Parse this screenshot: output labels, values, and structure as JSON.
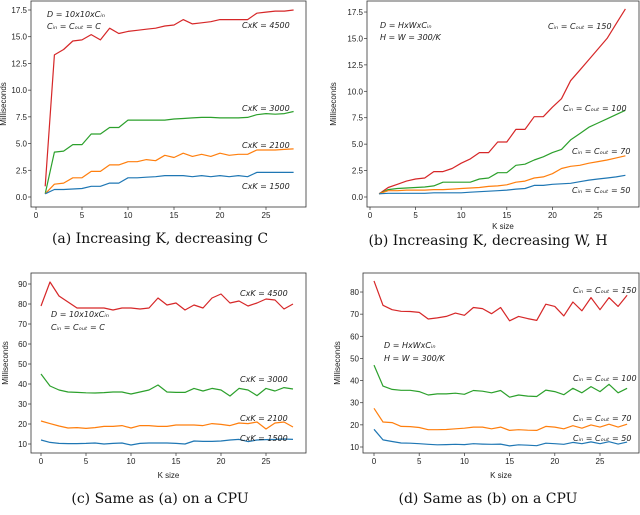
{
  "colors": {
    "blue": "#1f77b4",
    "orange": "#ff7f0e",
    "green": "#2ca02c",
    "red": "#d62728"
  },
  "chart_data": [
    {
      "type": "line",
      "caption": "(a) Increasing K, decreasing C",
      "xlabel": "",
      "ylabel": "Milliseconds",
      "xticks": [
        "0",
        "5",
        "10",
        "15",
        "20",
        "25"
      ],
      "yticks": [
        "0.0",
        "2.5",
        "5.0",
        "7.5",
        "10.0",
        "12.5",
        "15.0",
        "17.5"
      ],
      "xlim": [
        0,
        28
      ],
      "ylim": [
        0,
        17.5
      ],
      "grid": false,
      "annotations": [
        "D = 10x10xCᵢₙ",
        "Cᵢₙ = Cₒᵤₜ = C"
      ],
      "x_start": 1,
      "series": [
        {
          "name": "CxK = 4500",
          "color": "red",
          "values": [
            1.0,
            13.3,
            13.8,
            14.6,
            14.7,
            15.2,
            14.7,
            15.8,
            15.3,
            15.5,
            15.6,
            15.7,
            15.8,
            16.0,
            16.1,
            16.6,
            16.2,
            16.3,
            16.4,
            16.6,
            16.6,
            16.6,
            16.6,
            17.2,
            17.3,
            17.4,
            17.4,
            17.5
          ]
        },
        {
          "name": "CxK = 3000",
          "color": "green",
          "values": [
            0.3,
            4.2,
            4.3,
            4.9,
            4.9,
            5.9,
            5.9,
            6.5,
            6.5,
            7.2,
            7.2,
            7.2,
            7.2,
            7.2,
            7.3,
            7.35,
            7.4,
            7.45,
            7.45,
            7.4,
            7.4,
            7.4,
            7.45,
            7.7,
            7.8,
            7.75,
            7.8,
            8.0
          ]
        },
        {
          "name": "CxK = 2100",
          "color": "orange",
          "values": [
            0.3,
            1.2,
            1.3,
            1.8,
            1.8,
            2.4,
            2.4,
            3.0,
            3.0,
            3.3,
            3.3,
            3.5,
            3.4,
            3.9,
            3.7,
            4.1,
            3.8,
            4.0,
            3.8,
            4.1,
            3.9,
            4.0,
            4.0,
            4.4,
            4.4,
            4.4,
            4.45,
            4.5
          ]
        },
        {
          "name": "CxK = 1500",
          "color": "blue",
          "values": [
            0.3,
            0.7,
            0.7,
            0.75,
            0.8,
            1.0,
            1.0,
            1.3,
            1.3,
            1.8,
            1.8,
            1.85,
            1.9,
            2.0,
            2.0,
            2.0,
            1.9,
            2.0,
            1.9,
            2.0,
            1.9,
            2.0,
            1.9,
            2.3,
            2.3,
            2.3,
            2.3,
            2.3
          ]
        }
      ]
    },
    {
      "type": "line",
      "caption": "(b) Increasing K, decreasing W, H",
      "xlabel": "K size",
      "ylabel": "Milliseconds",
      "xticks": [
        "0",
        "5",
        "10",
        "15",
        "20",
        "25"
      ],
      "yticks": [
        "0.0",
        "2.5",
        "5.0",
        "7.5",
        "10.0",
        "12.5",
        "15.0",
        "17.5"
      ],
      "xlim": [
        0,
        28
      ],
      "ylim": [
        0,
        17.5
      ],
      "grid": false,
      "annotations": [
        "D = HxWxCᵢₙ",
        "H = W = 300/K"
      ],
      "x_start": 1,
      "series": [
        {
          "name": "Cᵢₙ = Cₒᵤₜ = 150",
          "color": "red",
          "values": [
            0.3,
            0.9,
            1.2,
            1.5,
            1.7,
            1.8,
            2.4,
            2.4,
            2.7,
            3.2,
            3.6,
            4.2,
            4.2,
            5.2,
            5.2,
            6.4,
            6.4,
            7.6,
            7.6,
            8.5,
            9.3,
            11.0,
            12.0,
            13.0,
            14.0,
            15.0,
            16.4,
            17.8
          ]
        },
        {
          "name": "Cᵢₙ = Cₒᵤₜ = 100",
          "color": "green",
          "values": [
            0.3,
            0.7,
            0.8,
            0.85,
            0.9,
            0.95,
            1.05,
            1.4,
            1.4,
            1.4,
            1.4,
            1.7,
            1.8,
            2.3,
            2.3,
            3.0,
            3.1,
            3.5,
            3.8,
            4.2,
            4.5,
            5.4,
            6.0,
            6.6,
            7.0,
            7.4,
            7.8,
            8.2
          ]
        },
        {
          "name": "Cᵢₙ = Cₒᵤₜ = 70",
          "color": "orange",
          "values": [
            0.3,
            0.6,
            0.6,
            0.65,
            0.65,
            0.65,
            0.7,
            0.7,
            0.75,
            0.8,
            0.85,
            0.9,
            1.0,
            1.05,
            1.15,
            1.4,
            1.5,
            1.8,
            1.9,
            2.2,
            2.7,
            2.9,
            3.0,
            3.2,
            3.35,
            3.5,
            3.7,
            3.9
          ]
        },
        {
          "name": "Cᵢₙ = Cₒᵤₜ = 50",
          "color": "blue",
          "values": [
            0.3,
            0.35,
            0.35,
            0.35,
            0.35,
            0.35,
            0.4,
            0.4,
            0.4,
            0.4,
            0.45,
            0.5,
            0.55,
            0.6,
            0.65,
            0.75,
            0.8,
            1.1,
            1.1,
            1.2,
            1.25,
            1.3,
            1.45,
            1.6,
            1.7,
            1.8,
            1.9,
            2.05
          ]
        }
      ]
    },
    {
      "type": "line",
      "caption": "(c) Same as (a) on a CPU",
      "xlabel": "K size",
      "ylabel": "Milliseconds",
      "xticks": [
        "0",
        "5",
        "10",
        "15",
        "20",
        "25"
      ],
      "yticks": [
        "10",
        "20",
        "30",
        "40",
        "50",
        "60",
        "70",
        "80",
        "90"
      ],
      "xlim": [
        0,
        28
      ],
      "ylim": [
        10,
        90
      ],
      "grid": false,
      "annotations": [
        "D = 10x10xCᵢₙ",
        "Cᵢₙ = Cₒᵤₜ = C"
      ],
      "x_start": 0,
      "series": [
        {
          "name": "CxK = 4500",
          "color": "red",
          "values": [
            79,
            91,
            84,
            81,
            78,
            78,
            78,
            78,
            77,
            78,
            78,
            77.5,
            78,
            83,
            79.5,
            80.5,
            77,
            79.5,
            78,
            83,
            85,
            80.5,
            81.5,
            79,
            80.5,
            82.5,
            82,
            77.5,
            80
          ]
        },
        {
          "name": "CxK = 3000",
          "color": "green",
          "values": [
            45,
            39,
            37,
            36,
            35.8,
            35.6,
            35.5,
            35.7,
            36,
            36,
            35,
            36,
            37,
            39.5,
            36,
            35.8,
            35.8,
            37.8,
            36.5,
            37.8,
            37,
            34,
            37.8,
            37,
            34.2,
            37.8,
            36.5,
            38.2,
            37.5
          ]
        },
        {
          "name": "CxK = 2100",
          "color": "orange",
          "values": [
            21.5,
            20.2,
            19,
            18,
            18.2,
            17.8,
            18.2,
            18.8,
            18.8,
            19.2,
            18,
            19.2,
            19.2,
            18.8,
            18.8,
            19.5,
            19.5,
            19.5,
            19.2,
            20.2,
            19.8,
            19.2,
            20.5,
            20.2,
            21,
            17.5,
            20.5,
            21,
            18.5
          ]
        },
        {
          "name": "CxK = 1500",
          "color": "blue",
          "values": [
            12,
            10.8,
            10.3,
            10.2,
            10.2,
            10.3,
            10.5,
            10,
            10.3,
            10.5,
            9.5,
            10.3,
            10.5,
            10.5,
            10.5,
            10.3,
            10,
            11.5,
            11.3,
            11.3,
            11.5,
            12,
            12.3,
            11.2,
            12,
            12.2,
            12.3,
            12.5,
            12.3
          ]
        }
      ]
    },
    {
      "type": "line",
      "caption": "(d) Same as (b) on a CPU",
      "xlabel": "K size",
      "ylabel": "Milliseconds",
      "xticks": [
        "0",
        "5",
        "10",
        "15",
        "20",
        "25"
      ],
      "yticks": [
        "10",
        "20",
        "30",
        "40",
        "50",
        "60",
        "70",
        "80"
      ],
      "xlim": [
        0,
        28
      ],
      "ylim": [
        10,
        80
      ],
      "grid": false,
      "annotations": [
        "D = HxWxCᵢₙ",
        "H = W = 300/K"
      ],
      "x_start": 0,
      "series": [
        {
          "name": "Cᵢₙ = Cₒᵤₜ = 150",
          "color": "red",
          "values": [
            85,
            74,
            72,
            71.3,
            71.2,
            70.8,
            67.8,
            68.3,
            69,
            70.5,
            69.5,
            73,
            72.5,
            70.2,
            73,
            67,
            69,
            68,
            67.2,
            74.5,
            73.5,
            69.2,
            75.5,
            71.5,
            77.5,
            72,
            77.5,
            73.5,
            78.5
          ]
        },
        {
          "name": "Cᵢₙ = Cₒᵤₜ = 100",
          "color": "green",
          "values": [
            47,
            37.5,
            36,
            35.6,
            35.6,
            35,
            33.5,
            34,
            34,
            34.3,
            33.8,
            35.5,
            35.2,
            34.5,
            35.5,
            32.5,
            33.5,
            33,
            32.8,
            35.7,
            35,
            33.6,
            36.5,
            34.5,
            37.3,
            35,
            38.3,
            34.5,
            36.5
          ]
        },
        {
          "name": "Cᵢₙ = Cₒᵤₜ = 70",
          "color": "orange",
          "values": [
            27.5,
            21.3,
            21,
            19.3,
            19.2,
            18.8,
            17.8,
            17.8,
            17.9,
            18.2,
            18.5,
            19,
            19,
            18.2,
            19,
            17.5,
            17.8,
            17.6,
            17.5,
            19.3,
            19,
            18.2,
            19.6,
            18.5,
            20,
            19,
            20.3,
            19,
            20.3
          ]
        },
        {
          "name": "Cᵢₙ = Cₒᵤₜ = 50",
          "color": "blue",
          "values": [
            18,
            13.2,
            12.5,
            11.8,
            11.7,
            11.5,
            11.2,
            11,
            11.1,
            11.2,
            11.1,
            11.5,
            11.3,
            11.2,
            11.3,
            10.5,
            11,
            10.8,
            10.6,
            11.7,
            11.5,
            11.2,
            12.1,
            11.5,
            12.3,
            11.5,
            12.4,
            11.3,
            12.2
          ]
        }
      ]
    }
  ]
}
